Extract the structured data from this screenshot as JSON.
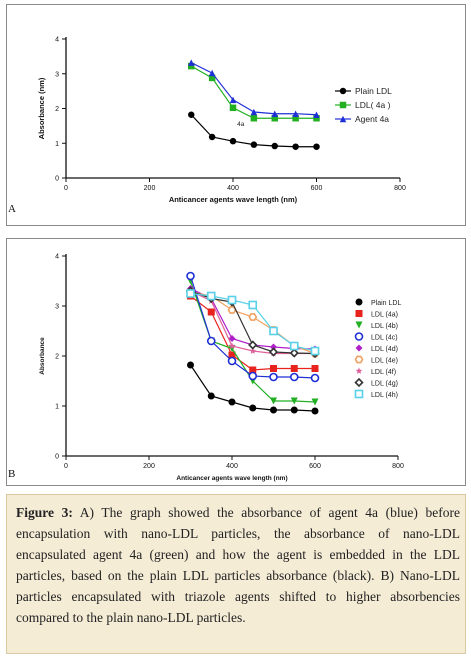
{
  "chart_data": [
    {
      "type": "line",
      "panel": "A",
      "xlabel": "Anticancer agents wave length (nm)",
      "ylabel": "Absorbance (nm)",
      "xlim": [
        0,
        800
      ],
      "ylim": [
        0,
        4
      ],
      "xticks": [
        "0",
        "200",
        "400",
        "600",
        "800"
      ],
      "yticks": [
        "0",
        "1",
        "2",
        "3",
        "4"
      ],
      "grid": false,
      "legend": "top-right",
      "annotation": "4a",
      "series": [
        {
          "name": "Plain LDL",
          "color": "#000000",
          "marker": "circle",
          "x": [
            300,
            350,
            400,
            450,
            500,
            550,
            600
          ],
          "y": [
            1.82,
            1.18,
            1.06,
            0.96,
            0.92,
            0.9,
            0.9
          ]
        },
        {
          "name": "LDL(       4a     )",
          "color": "#22b022",
          "marker": "square",
          "x": [
            300,
            350,
            400,
            450,
            500,
            550,
            600
          ],
          "y": [
            3.22,
            2.88,
            2.02,
            1.72,
            1.72,
            1.72,
            1.72
          ]
        },
        {
          "name": "Agent   4a",
          "color": "#1f2fd6",
          "marker": "triangle",
          "x": [
            300,
            350,
            400,
            450,
            500,
            550,
            600
          ],
          "y": [
            3.32,
            3.02,
            2.25,
            1.9,
            1.85,
            1.85,
            1.82
          ]
        }
      ]
    },
    {
      "type": "line",
      "panel": "B",
      "xlabel": "Anticancer agents wave length (nm)",
      "ylabel": "Absorbance",
      "xlim": [
        0,
        800
      ],
      "ylim": [
        0,
        4
      ],
      "xticks": [
        "0",
        "200",
        "400",
        "600",
        "800"
      ],
      "yticks": [
        "0",
        "1",
        "2",
        "3",
        "4"
      ],
      "grid": false,
      "legend": "right",
      "series": [
        {
          "name": "Plain LDL",
          "color": "#000000",
          "marker": "circle-filled",
          "x": [
            300,
            350,
            400,
            450,
            500,
            550,
            600
          ],
          "y": [
            1.82,
            1.2,
            1.08,
            0.96,
            0.92,
            0.92,
            0.9
          ]
        },
        {
          "name": "LDL (4a)",
          "color": "#e8231e",
          "marker": "square",
          "x": [
            300,
            350,
            400,
            450,
            500,
            550,
            600
          ],
          "y": [
            3.2,
            2.88,
            2.02,
            1.72,
            1.75,
            1.75,
            1.75
          ]
        },
        {
          "name": "LDL (4b)",
          "color": "#22b022",
          "marker": "triangle-down",
          "x": [
            300,
            350,
            400,
            450,
            500,
            550,
            600
          ],
          "y": [
            3.5,
            2.3,
            2.15,
            1.5,
            1.1,
            1.1,
            1.08
          ]
        },
        {
          "name": "LDL (4c)",
          "color": "#1f2fd6",
          "marker": "circle-open",
          "x": [
            300,
            350,
            400,
            450,
            500,
            550,
            600
          ],
          "y": [
            3.6,
            2.3,
            1.9,
            1.6,
            1.58,
            1.58,
            1.56
          ]
        },
        {
          "name": "LDL (4d)",
          "color": "#b020c8",
          "marker": "diamond",
          "x": [
            300,
            350,
            400,
            450,
            500,
            550,
            600
          ],
          "y": [
            3.35,
            3.15,
            2.35,
            2.22,
            2.18,
            2.15,
            2.14
          ]
        },
        {
          "name": "LDL (4e)",
          "color": "#f0a060",
          "marker": "hexagon",
          "x": [
            300,
            350,
            400,
            450,
            500,
            550,
            600
          ],
          "y": [
            3.28,
            3.2,
            2.92,
            2.78,
            2.52,
            2.2,
            2.05
          ]
        },
        {
          "name": "LDL (4f)",
          "color": "#e0609a",
          "marker": "star",
          "x": [
            300,
            350,
            400,
            450,
            500,
            550,
            600
          ],
          "y": [
            3.3,
            3.1,
            2.2,
            2.1,
            2.05,
            2.05,
            2.05
          ]
        },
        {
          "name": "LDL (4g)",
          "color": "#333333",
          "marker": "diamond-open",
          "x": [
            300,
            350,
            400,
            450,
            500,
            550,
            600
          ],
          "y": [
            3.3,
            3.15,
            3.08,
            2.22,
            2.08,
            2.06,
            2.05
          ]
        },
        {
          "name": "LDL (4h)",
          "color": "#58d0e8",
          "marker": "square-open",
          "x": [
            300,
            350,
            400,
            450,
            500,
            550,
            600
          ],
          "y": [
            3.25,
            3.2,
            3.12,
            3.02,
            2.5,
            2.2,
            2.1
          ]
        }
      ]
    }
  ],
  "panels": {
    "a_letter": "A",
    "b_letter": "B"
  },
  "caption": {
    "label": "Figure 3:",
    "text": "A) The graph showed the absorbance of agent 4a (blue) before encapsulation with nano-LDL particles, the absorbance of nano-LDL encapsulated agent 4a (green) and how the agent is embedded in the LDL particles, based on the plain LDL particles absorbance (black). B) Nano-LDL particles encapsulated with triazole agents shifted to higher absorbencies compared to the plain nano-LDL particles."
  }
}
